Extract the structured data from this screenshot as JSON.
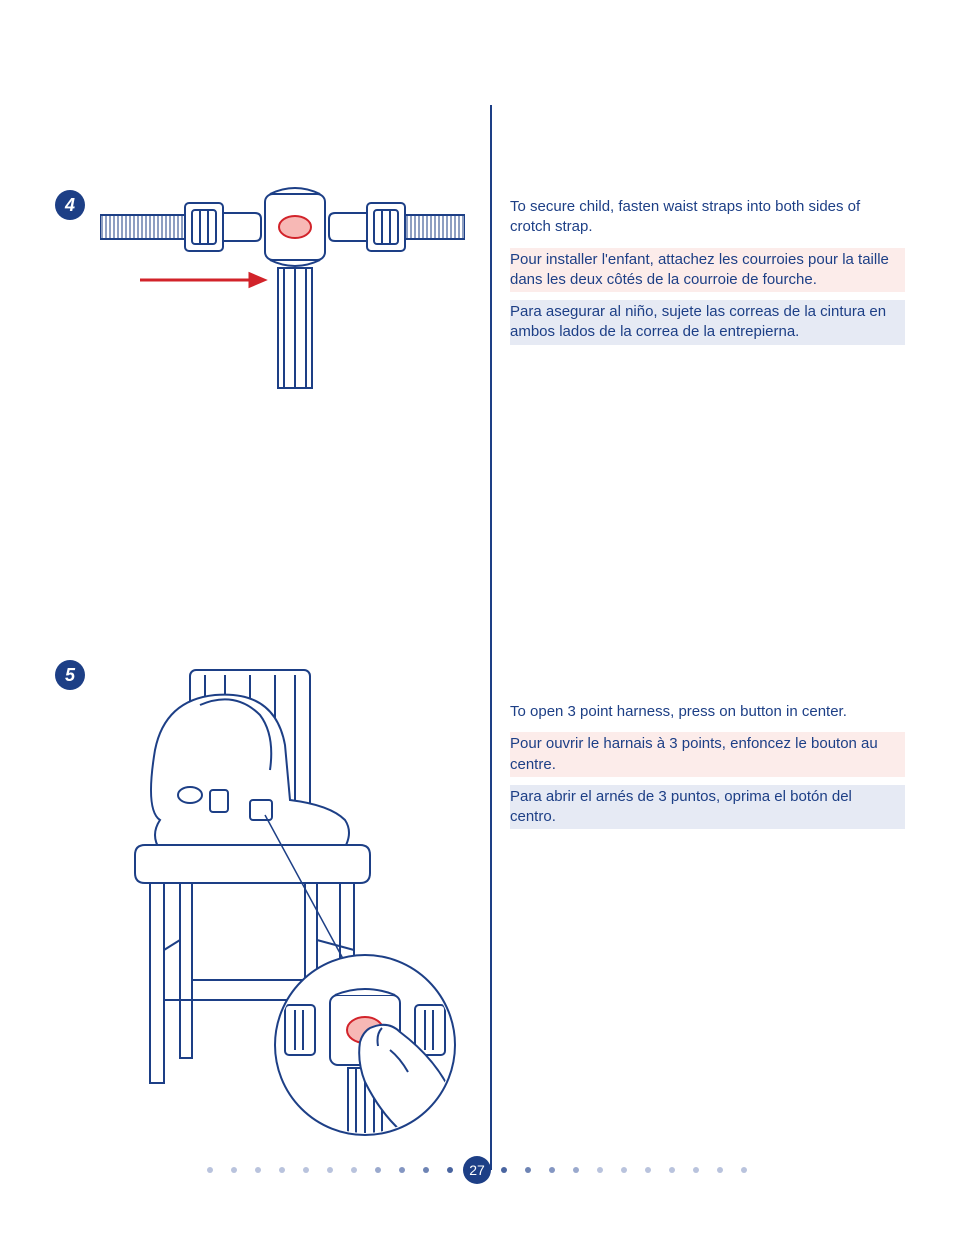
{
  "page_number": "27",
  "colors": {
    "primary": "#1d3f86",
    "accent": "#d2232a",
    "accent_fill": "#f7b8b5",
    "bg_fr": "#fcecea",
    "bg_es": "#e6eaf4",
    "dot_light": "#b9c3dd",
    "dot_mid": "#6e84b4"
  },
  "steps": [
    {
      "num": "4",
      "text_en": "To secure child, fasten waist straps into both sides of crotch strap.",
      "text_fr": "Pour installer l'enfant, attachez les courroies pour la taille dans les deux côtés de la courroie de fourche.",
      "text_es": "Para asegurar al niño, sujete las correas de la cintura en ambos lados de la correa de la entrepierna."
    },
    {
      "num": "5",
      "text_en": "To open 3 point harness, press on button in center.",
      "text_fr": "Pour ouvrir le harnais à 3 points, enfoncez le bouton au centre.",
      "text_es": "Para abrir el arnés de 3 puntos, oprima el botón del centro."
    }
  ],
  "footer": {
    "dots_each_side": 11,
    "dot_gradient_left": [
      "#b9c3dd",
      "#b9c3dd",
      "#b9c3dd",
      "#b9c3dd",
      "#b9c3dd",
      "#b9c3dd",
      "#b9c3dd",
      "#9aa9cd",
      "#8496c2",
      "#6e84b4",
      "#4a65a0"
    ],
    "dot_gradient_right": [
      "#4a65a0",
      "#6e84b4",
      "#8496c2",
      "#9aa9cd",
      "#b9c3dd",
      "#b9c3dd",
      "#b9c3dd",
      "#b9c3dd",
      "#b9c3dd",
      "#b9c3dd",
      "#b9c3dd"
    ]
  }
}
